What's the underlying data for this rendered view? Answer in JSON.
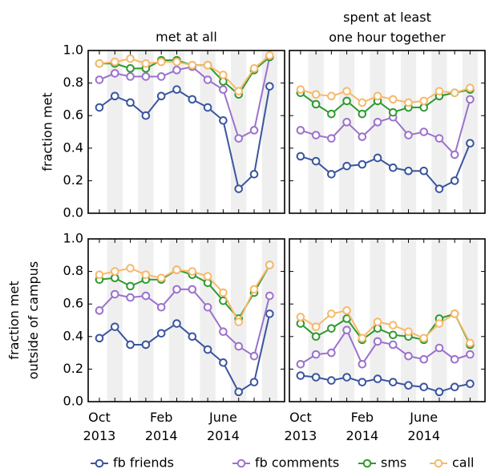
{
  "chart_data": [
    {
      "type": "line",
      "title": "met at all",
      "ylabel": "fraction met",
      "ylim": [
        0,
        1.0
      ],
      "yticks": [
        {
          "value": 0,
          "label": "0.0"
        },
        {
          "value": 0.2,
          "label": "0.2"
        },
        {
          "value": 0.4,
          "label": "0.4"
        },
        {
          "value": 0.6,
          "label": "0.6"
        },
        {
          "value": 0.8,
          "label": "0.8"
        },
        {
          "value": 1.0,
          "label": "1.0"
        }
      ],
      "series": [
        {
          "name": "fb friends",
          "color": "#3a559f",
          "values": [
            0.65,
            0.72,
            0.68,
            0.6,
            0.72,
            0.76,
            0.7,
            0.65,
            0.57,
            0.15,
            0.24,
            0.78
          ]
        },
        {
          "name": "fb comments",
          "color": "#9b72cc",
          "values": [
            0.82,
            0.86,
            0.84,
            0.84,
            0.84,
            0.88,
            0.9,
            0.82,
            0.76,
            0.46,
            0.51,
            0.96
          ]
        },
        {
          "name": "sms",
          "color": "#2e9a2e",
          "values": [
            0.92,
            0.92,
            0.89,
            0.89,
            0.94,
            0.94,
            0.91,
            0.91,
            0.81,
            0.73,
            0.88,
            0.96
          ]
        },
        {
          "name": "call",
          "color": "#f7b96a",
          "values": [
            0.92,
            0.93,
            0.95,
            0.92,
            0.93,
            0.93,
            0.91,
            0.91,
            0.85,
            0.75,
            0.89,
            0.97
          ]
        }
      ]
    },
    {
      "type": "line",
      "title": "spent at least one hour together",
      "ylim": [
        0,
        1.0
      ],
      "yticks": [
        0,
        0.2,
        0.4,
        0.6,
        0.8,
        1.0
      ],
      "series": [
        {
          "name": "fb friends",
          "color": "#3a559f",
          "values": [
            0.35,
            0.32,
            0.24,
            0.29,
            0.3,
            0.34,
            0.28,
            0.26,
            0.26,
            0.15,
            0.2,
            0.43
          ]
        },
        {
          "name": "fb comments",
          "color": "#9b72cc",
          "values": [
            0.51,
            0.48,
            0.46,
            0.56,
            0.47,
            0.56,
            0.59,
            0.48,
            0.5,
            0.46,
            0.36,
            0.7
          ]
        },
        {
          "name": "sms",
          "color": "#2e9a2e",
          "values": [
            0.74,
            0.67,
            0.61,
            0.69,
            0.61,
            0.69,
            0.62,
            0.65,
            0.65,
            0.72,
            0.74,
            0.76
          ]
        },
        {
          "name": "call",
          "color": "#f7b96a",
          "values": [
            0.76,
            0.73,
            0.72,
            0.75,
            0.68,
            0.72,
            0.7,
            0.68,
            0.69,
            0.75,
            0.74,
            0.77
          ]
        }
      ]
    },
    {
      "type": "line",
      "ylabel": "fraction met outside of campus",
      "categories": [
        "Oct 2013",
        null,
        null,
        null,
        "Feb 2014",
        null,
        null,
        null,
        "June 2014",
        null,
        null,
        null
      ],
      "ylim": [
        0,
        1.0
      ],
      "yticks": [
        {
          "value": 0,
          "label": "0.0"
        },
        {
          "value": 0.2,
          "label": "0.2"
        },
        {
          "value": 0.4,
          "label": "0.4"
        },
        {
          "value": 0.6,
          "label": "0.6"
        },
        {
          "value": 0.8,
          "label": "0.8"
        },
        {
          "value": 1.0,
          "label": "1.0"
        }
      ],
      "series": [
        {
          "name": "fb friends",
          "color": "#3a559f",
          "values": [
            0.39,
            0.46,
            0.35,
            0.35,
            0.42,
            0.48,
            0.4,
            0.32,
            0.24,
            0.06,
            0.12,
            0.54
          ]
        },
        {
          "name": "fb comments",
          "color": "#9b72cc",
          "values": [
            0.56,
            0.66,
            0.64,
            0.65,
            0.58,
            0.69,
            0.69,
            0.58,
            0.43,
            0.34,
            0.28,
            0.65
          ]
        },
        {
          "name": "sms",
          "color": "#2e9a2e",
          "values": [
            0.75,
            0.76,
            0.71,
            0.75,
            0.75,
            0.81,
            0.78,
            0.73,
            0.62,
            0.51,
            0.67,
            0.84
          ]
        },
        {
          "name": "call",
          "color": "#f7b96a",
          "values": [
            0.78,
            0.8,
            0.82,
            0.78,
            0.76,
            0.81,
            0.8,
            0.77,
            0.67,
            0.49,
            0.69,
            0.84
          ]
        }
      ]
    },
    {
      "type": "line",
      "categories": [
        "Oct 2013",
        null,
        null,
        null,
        "Feb 2014",
        null,
        null,
        null,
        "June 2014",
        null,
        null,
        null
      ],
      "ylim": [
        0,
        1.0
      ],
      "yticks": [
        0,
        0.2,
        0.4,
        0.6,
        0.8,
        1.0
      ],
      "series": [
        {
          "name": "fb friends",
          "color": "#3a559f",
          "values": [
            0.16,
            0.15,
            0.13,
            0.15,
            0.12,
            0.14,
            0.12,
            0.1,
            0.09,
            0.06,
            0.09,
            0.11
          ]
        },
        {
          "name": "fb comments",
          "color": "#9b72cc",
          "values": [
            0.23,
            0.29,
            0.3,
            0.44,
            0.23,
            0.37,
            0.35,
            0.28,
            0.26,
            0.33,
            0.26,
            0.29
          ]
        },
        {
          "name": "sms",
          "color": "#2e9a2e",
          "values": [
            0.48,
            0.4,
            0.45,
            0.51,
            0.38,
            0.45,
            0.41,
            0.4,
            0.38,
            0.51,
            0.54,
            0.35
          ]
        },
        {
          "name": "call",
          "color": "#f7b96a",
          "values": [
            0.52,
            0.46,
            0.54,
            0.56,
            0.39,
            0.49,
            0.47,
            0.43,
            0.39,
            0.48,
            0.54,
            0.36
          ]
        }
      ]
    }
  ]
}
